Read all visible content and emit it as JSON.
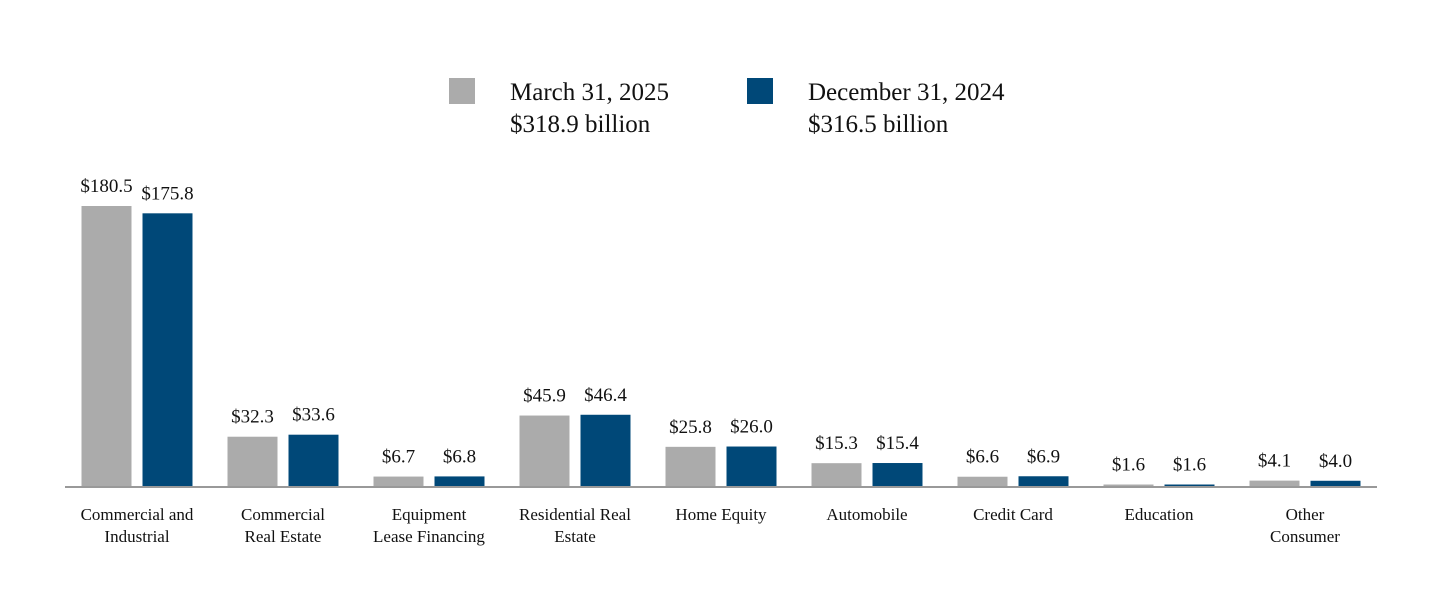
{
  "chart_data": {
    "type": "bar",
    "categories": [
      "Commercial and\nIndustrial",
      "Commercial\nReal Estate",
      "Equipment\nLease Financing",
      "Residential Real\nEstate",
      "Home Equity",
      "Automobile",
      "Credit Card",
      "Education",
      "Other\nConsumer"
    ],
    "series": [
      {
        "name": "March 31, 2025",
        "total": "$318.9 billion",
        "color": "#ababab",
        "values": [
          180.5,
          32.3,
          6.7,
          45.9,
          25.8,
          15.3,
          6.6,
          1.6,
          4.1
        ],
        "value_labels": [
          "$180.5",
          "$32.3",
          "$6.7",
          "$45.9",
          "$25.8",
          "$15.3",
          "$6.6",
          "$1.6",
          "$4.1"
        ]
      },
      {
        "name": "December 31, 2024",
        "total": "$316.5 billion",
        "color": "#004878",
        "values": [
          175.8,
          33.6,
          6.8,
          46.4,
          26.0,
          15.4,
          6.9,
          1.6,
          4.0
        ],
        "value_labels": [
          "$175.8",
          "$33.6",
          "$6.8",
          "$46.4",
          "$26.0",
          "$15.4",
          "$6.9",
          "$1.6",
          "$4.0"
        ]
      }
    ]
  }
}
